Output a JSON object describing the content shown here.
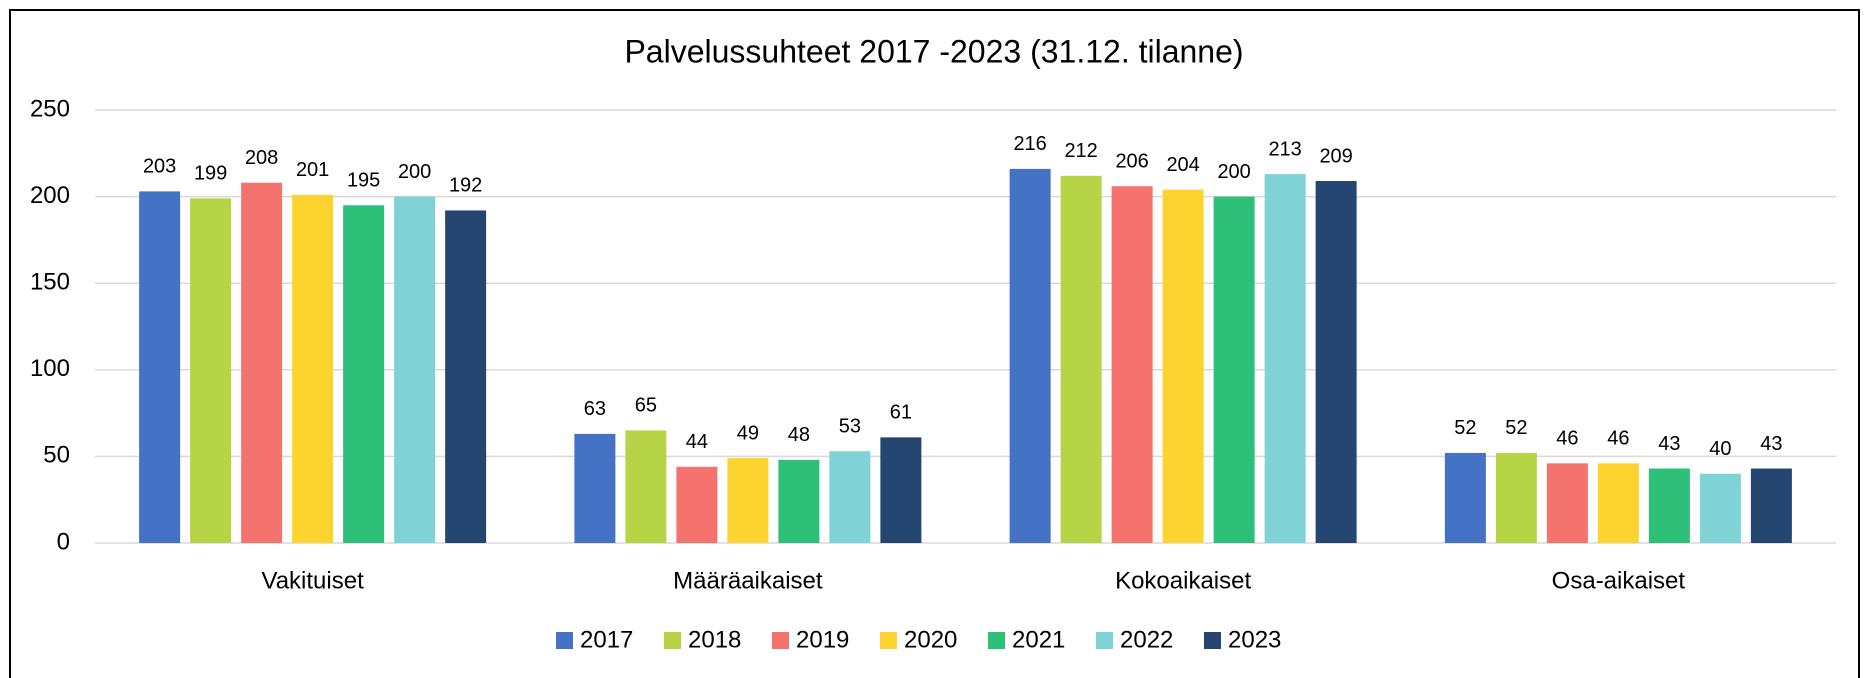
{
  "chart_data": {
    "type": "bar",
    "title": "Palvelussuhteet 2017 -2023 (31.12. tilanne)",
    "categories": [
      "Vakituiset",
      "Määräaikaiset",
      "Kokoaikaiset",
      "Osa-aikaiset"
    ],
    "series": [
      {
        "name": "2017",
        "color": "#4472c4",
        "values": [
          203,
          63,
          216,
          52
        ]
      },
      {
        "name": "2018",
        "color": "#b6d445",
        "values": [
          199,
          65,
          212,
          52
        ]
      },
      {
        "name": "2019",
        "color": "#f4736f",
        "values": [
          208,
          44,
          206,
          46
        ]
      },
      {
        "name": "2020",
        "color": "#fdd330",
        "values": [
          201,
          49,
          204,
          46
        ]
      },
      {
        "name": "2021",
        "color": "#2ebf78",
        "values": [
          195,
          48,
          200,
          43
        ]
      },
      {
        "name": "2022",
        "color": "#7fd3d6",
        "values": [
          200,
          53,
          213,
          40
        ]
      },
      {
        "name": "2023",
        "color": "#264672",
        "values": [
          192,
          61,
          209,
          43
        ]
      }
    ],
    "ylim": [
      0,
      250
    ],
    "yticks": [
      0,
      50,
      100,
      150,
      200,
      250
    ],
    "grid": true,
    "legend": "bottom"
  }
}
